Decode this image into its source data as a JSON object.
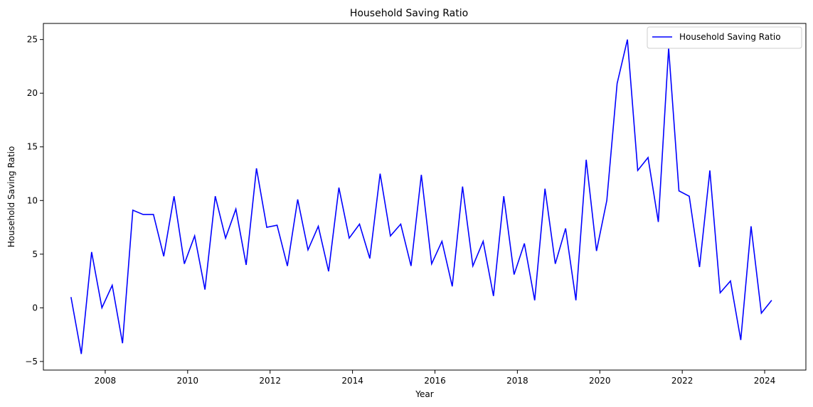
{
  "chart_data": {
    "type": "line",
    "title": "Household Saving Ratio",
    "xlabel": "Year",
    "ylabel": "Household Saving Ratio",
    "xlim": [
      2006.5,
      2025.0
    ],
    "ylim": [
      -5.8,
      26.5
    ],
    "x_ticks": [
      2008,
      2010,
      2012,
      2014,
      2016,
      2018,
      2020,
      2022,
      2024
    ],
    "x_tick_labels": [
      "2008",
      "2010",
      "2012",
      "2014",
      "2016",
      "2018",
      "2020",
      "2022",
      "2024"
    ],
    "y_ticks": [
      -5,
      0,
      5,
      10,
      15,
      20,
      25
    ],
    "y_tick_labels": [
      "−5",
      "0",
      "5",
      "10",
      "15",
      "20",
      "25"
    ],
    "grid": false,
    "legend_position": "top-right",
    "series": [
      {
        "name": "Household Saving Ratio",
        "color": "#0000ff",
        "x": [
          2007.17,
          2007.42,
          2007.67,
          2007.92,
          2008.17,
          2008.42,
          2008.67,
          2008.92,
          2009.17,
          2009.42,
          2009.67,
          2009.92,
          2010.17,
          2010.42,
          2010.67,
          2010.92,
          2011.17,
          2011.42,
          2011.67,
          2011.92,
          2012.17,
          2012.42,
          2012.67,
          2012.92,
          2013.17,
          2013.42,
          2013.67,
          2013.92,
          2014.17,
          2014.42,
          2014.67,
          2014.92,
          2015.17,
          2015.42,
          2015.67,
          2015.92,
          2016.17,
          2016.42,
          2016.67,
          2016.92,
          2017.17,
          2017.42,
          2017.67,
          2017.92,
          2018.17,
          2018.42,
          2018.67,
          2018.92,
          2019.17,
          2019.42,
          2019.67,
          2019.92,
          2020.17,
          2020.42,
          2020.67,
          2020.92,
          2021.17,
          2021.42,
          2021.67,
          2021.92,
          2022.17,
          2022.42,
          2022.67,
          2022.92,
          2023.17,
          2023.42,
          2023.67,
          2023.92,
          2024.17
        ],
        "values": [
          1.0,
          -4.3,
          5.2,
          0.0,
          2.1,
          -3.3,
          9.1,
          8.7,
          8.7,
          4.8,
          10.4,
          4.1,
          6.7,
          1.7,
          10.4,
          6.5,
          9.2,
          4.0,
          13.0,
          7.5,
          7.7,
          3.9,
          10.1,
          5.4,
          7.6,
          3.4,
          11.2,
          6.5,
          7.8,
          4.6,
          12.5,
          6.7,
          7.8,
          3.9,
          12.4,
          4.1,
          6.2,
          2.0,
          11.3,
          3.9,
          6.2,
          1.1,
          10.4,
          3.1,
          6.0,
          0.7,
          11.1,
          4.1,
          7.4,
          0.7,
          13.8,
          5.3,
          10.0,
          20.9,
          25.0,
          12.8,
          14.0,
          8.0,
          24.2,
          10.9,
          10.4,
          3.8,
          12.8,
          1.4,
          2.5,
          -3.0,
          7.6,
          -0.5,
          0.7
        ]
      }
    ]
  }
}
